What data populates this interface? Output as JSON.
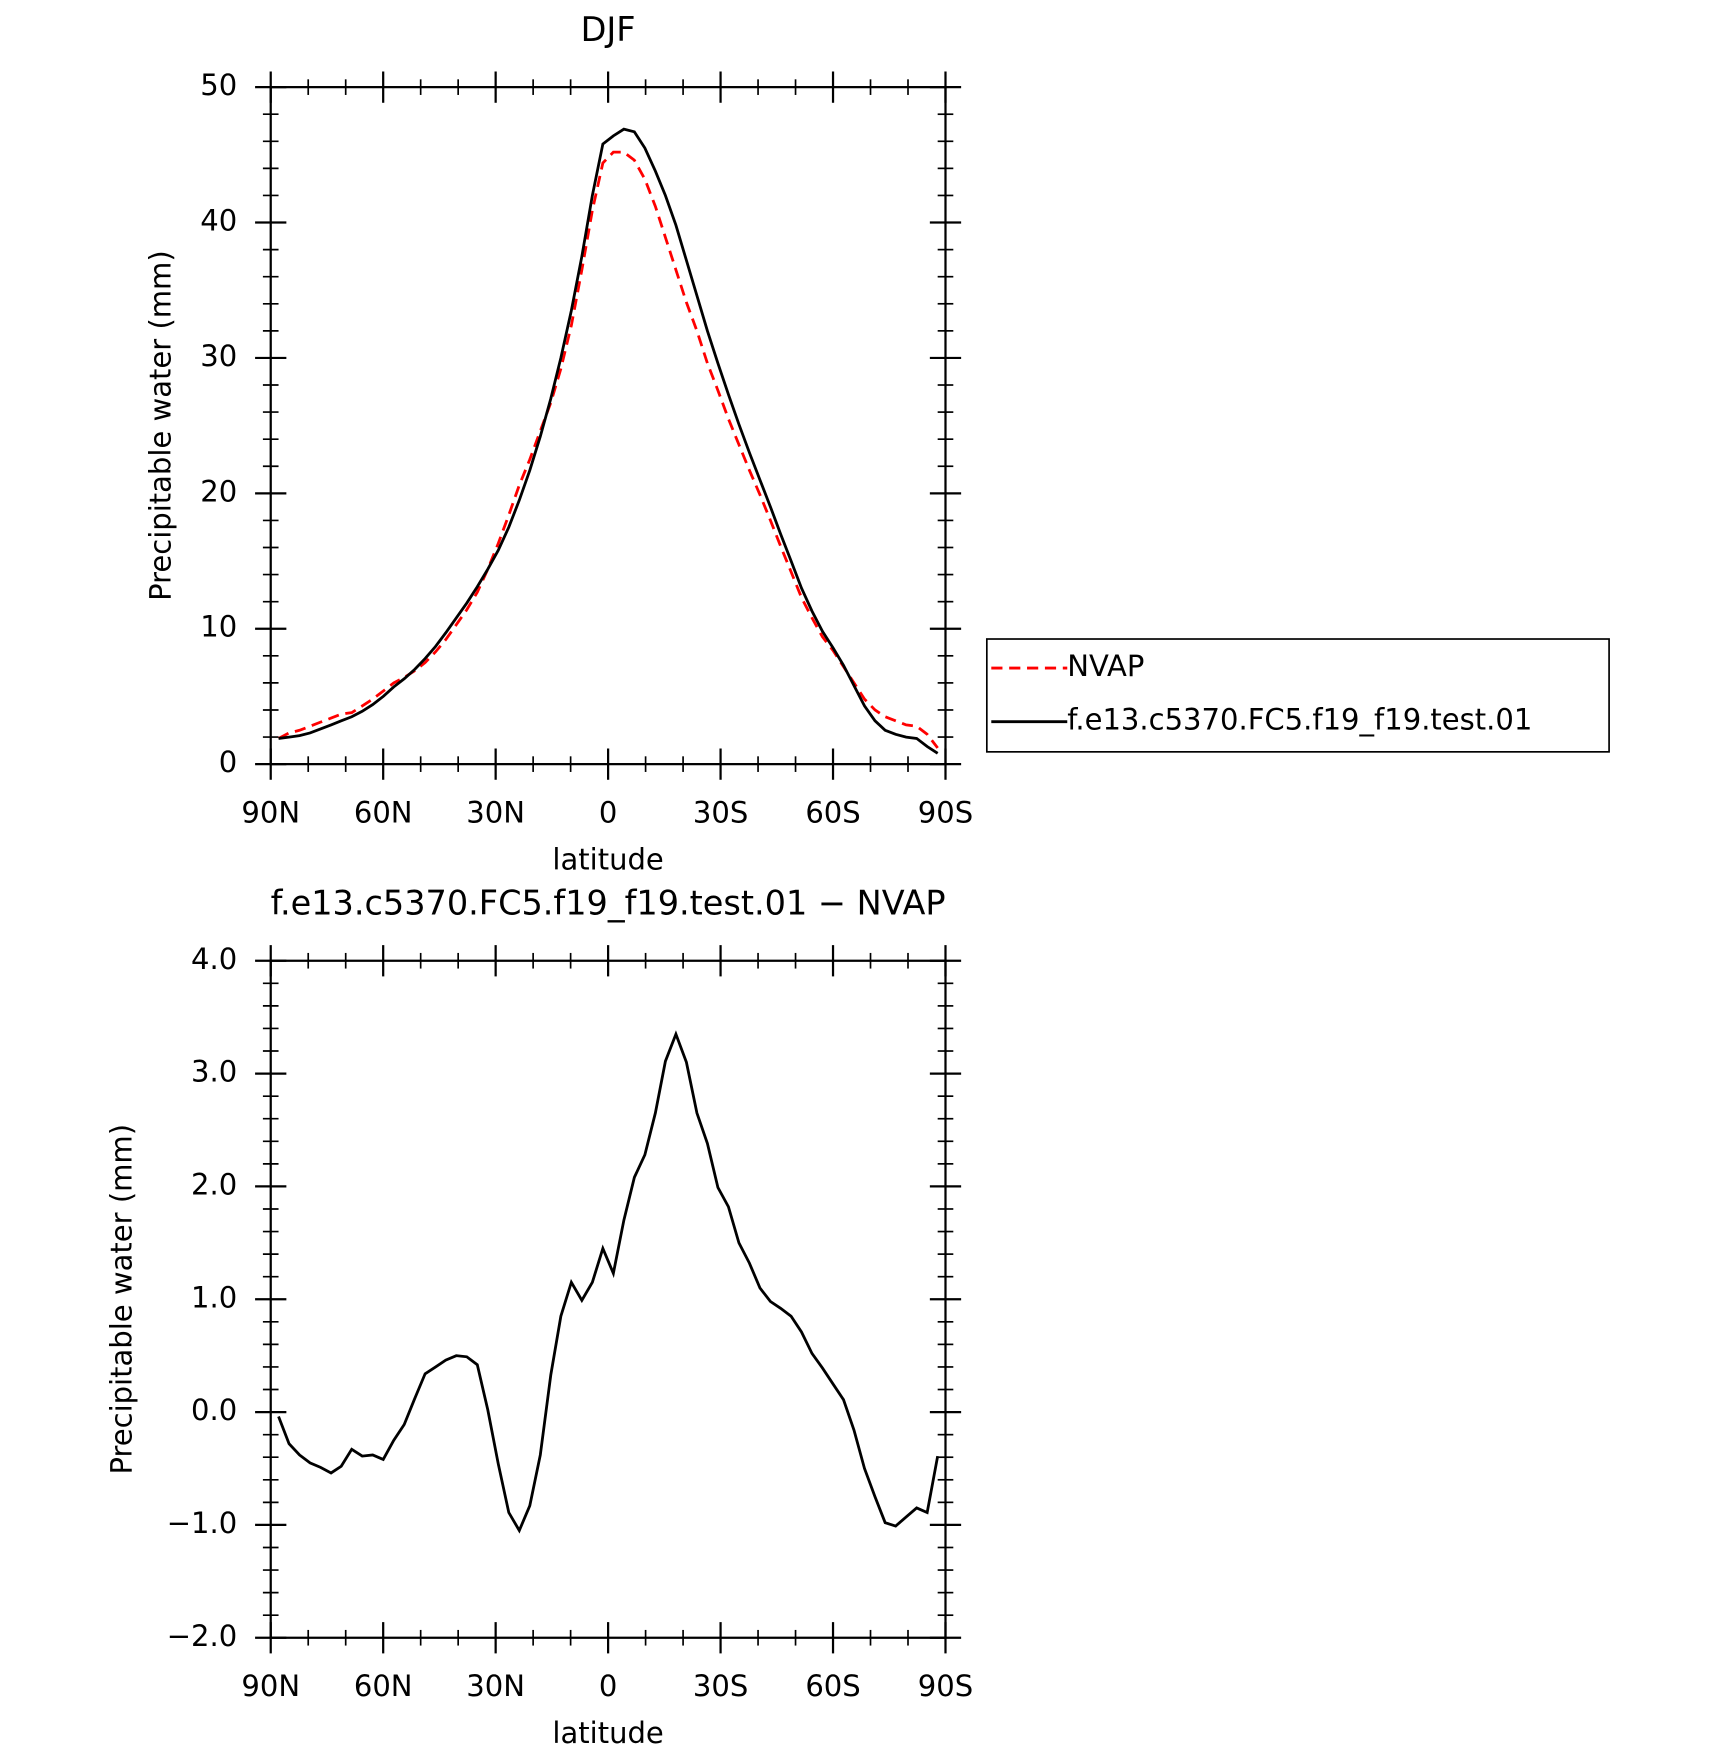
{
  "chart_data": [
    {
      "type": "line",
      "title": "DJF",
      "xlabel": "latitude",
      "ylabel": "Precipitable water (mm)",
      "xlim": [
        90,
        -90
      ],
      "xticks": [
        {
          "value": 90,
          "label": "90N"
        },
        {
          "value": 60,
          "label": "60N"
        },
        {
          "value": 30,
          "label": "30N"
        },
        0,
        {
          "value": -30,
          "label": "30S"
        },
        {
          "value": -60,
          "label": "60S"
        },
        {
          "value": -90,
          "label": "90S"
        }
      ],
      "ylim": [
        0,
        50
      ],
      "yticks": [
        0,
        10,
        20,
        30,
        40,
        50
      ],
      "legend": "right",
      "x": [
        87.9,
        85.1,
        82.3,
        79.5,
        76.7,
        73.9,
        71.2,
        68.4,
        65.6,
        62.8,
        60.0,
        57.2,
        54.4,
        51.6,
        48.8,
        46.0,
        43.3,
        40.5,
        37.7,
        34.9,
        32.1,
        29.3,
        26.5,
        23.7,
        20.9,
        18.1,
        15.3,
        12.6,
        9.8,
        7.0,
        4.2,
        1.4,
        -1.4,
        -4.2,
        -7.0,
        -9.8,
        -12.6,
        -15.3,
        -18.1,
        -20.9,
        -23.7,
        -26.5,
        -29.3,
        -32.1,
        -34.9,
        -37.7,
        -40.5,
        -43.3,
        -46.0,
        -48.8,
        -51.6,
        -54.4,
        -57.2,
        -60.0,
        -62.8,
        -65.6,
        -68.4,
        -71.2,
        -73.9,
        -76.7,
        -79.5,
        -82.3,
        -85.1,
        -87.9
      ],
      "series": [
        {
          "name": "NVAP",
          "color": "#ff0000",
          "dash": true,
          "values": [
            1.9,
            2.3,
            2.5,
            2.8,
            3.1,
            3.4,
            3.7,
            3.8,
            4.3,
            4.8,
            5.4,
            6.0,
            6.4,
            6.9,
            7.5,
            8.3,
            9.2,
            10.3,
            11.4,
            12.7,
            14.4,
            16.3,
            18.4,
            20.6,
            22.5,
            24.6,
            26.7,
            29.2,
            32.4,
            36.5,
            40.9,
            44.4,
            45.2,
            45.2,
            44.6,
            43.2,
            41.2,
            38.9,
            36.5,
            34.1,
            32.0,
            29.6,
            27.6,
            25.5,
            23.6,
            21.7,
            19.9,
            18.0,
            16.1,
            14.2,
            12.3,
            10.8,
            9.4,
            8.4,
            7.2,
            6.0,
            4.8,
            4.0,
            3.5,
            3.2,
            2.9,
            2.8,
            2.2,
            1.2
          ]
        },
        {
          "name": "f.e13.c5370.FC5.f19_f19.test.01",
          "color": "#000000",
          "dash": false,
          "values": [
            1.9,
            2.0,
            2.1,
            2.3,
            2.6,
            2.9,
            3.2,
            3.5,
            3.9,
            4.4,
            5.0,
            5.7,
            6.3,
            7.0,
            7.8,
            8.7,
            9.7,
            10.8,
            11.9,
            13.1,
            14.4,
            15.8,
            17.5,
            19.5,
            21.7,
            24.2,
            27.0,
            30.0,
            33.5,
            37.5,
            42.0,
            45.8,
            46.4,
            46.9,
            46.7,
            45.5,
            43.8,
            42.0,
            39.8,
            37.2,
            34.6,
            32.0,
            29.6,
            27.3,
            25.1,
            23.0,
            21.0,
            19.0,
            17.0,
            15.0,
            13.0,
            11.3,
            9.8,
            8.6,
            7.3,
            5.8,
            4.3,
            3.2,
            2.5,
            2.2,
            2.0,
            1.9,
            1.3,
            0.8
          ]
        }
      ]
    },
    {
      "type": "line",
      "title": "f.e13.c5370.FC5.f19_f19.test.01 − NVAP",
      "xlabel": "latitude",
      "ylabel": "Precipitable water (mm)",
      "xlim": [
        90,
        -90
      ],
      "xticks": [
        {
          "value": 90,
          "label": "90N"
        },
        {
          "value": 60,
          "label": "60N"
        },
        {
          "value": 30,
          "label": "30N"
        },
        0,
        {
          "value": -30,
          "label": "30S"
        },
        {
          "value": -60,
          "label": "60S"
        },
        {
          "value": -90,
          "label": "90S"
        }
      ],
      "ylim": [
        -2,
        4
      ],
      "yticks": [
        {
          "value": -2,
          "label": "−2.0"
        },
        {
          "value": -1,
          "label": "−1.0"
        },
        {
          "value": 0,
          "label": "0.0"
        },
        {
          "value": 1,
          "label": "1.0"
        },
        {
          "value": 2,
          "label": "2.0"
        },
        {
          "value": 3,
          "label": "3.0"
        },
        {
          "value": 4,
          "label": "4.0"
        }
      ],
      "x": [
        87.9,
        85.1,
        82.3,
        79.5,
        76.7,
        73.9,
        71.2,
        68.4,
        65.6,
        62.8,
        60.0,
        57.2,
        54.4,
        51.6,
        48.8,
        46.0,
        43.3,
        40.5,
        37.7,
        34.9,
        32.1,
        29.3,
        26.5,
        23.7,
        20.9,
        18.1,
        15.3,
        12.6,
        9.8,
        7.0,
        4.2,
        1.4,
        -1.4,
        -4.2,
        -7.0,
        -9.8,
        -12.6,
        -15.3,
        -18.1,
        -20.9,
        -23.7,
        -26.5,
        -29.3,
        -32.1,
        -34.9,
        -37.7,
        -40.5,
        -43.3,
        -46.0,
        -48.8,
        -51.6,
        -54.4,
        -57.2,
        -60.0,
        -62.8,
        -65.6,
        -68.4,
        -71.2,
        -73.9,
        -76.7,
        -79.5,
        -82.3,
        -85.1,
        -87.9
      ],
      "series": [
        {
          "color": "#000000",
          "dash": false,
          "values": [
            -0.04,
            -0.28,
            -0.38,
            -0.45,
            -0.49,
            -0.54,
            -0.48,
            -0.33,
            -0.39,
            -0.38,
            -0.42,
            -0.25,
            -0.11,
            0.12,
            0.34,
            0.4,
            0.46,
            0.5,
            0.49,
            0.42,
            0.02,
            -0.46,
            -0.89,
            -1.05,
            -0.83,
            -0.38,
            0.33,
            0.85,
            1.15,
            0.99,
            1.15,
            1.45,
            1.23,
            1.7,
            2.08,
            2.28,
            2.65,
            3.11,
            3.35,
            3.1,
            2.65,
            2.38,
            1.99,
            1.82,
            1.5,
            1.32,
            1.1,
            0.98,
            0.92,
            0.85,
            0.71,
            0.52,
            0.39,
            0.25,
            0.11,
            -0.16,
            -0.5,
            -0.75,
            -0.98,
            -1.01,
            -0.93,
            -0.85,
            -0.89,
            -0.39
          ]
        }
      ]
    }
  ]
}
